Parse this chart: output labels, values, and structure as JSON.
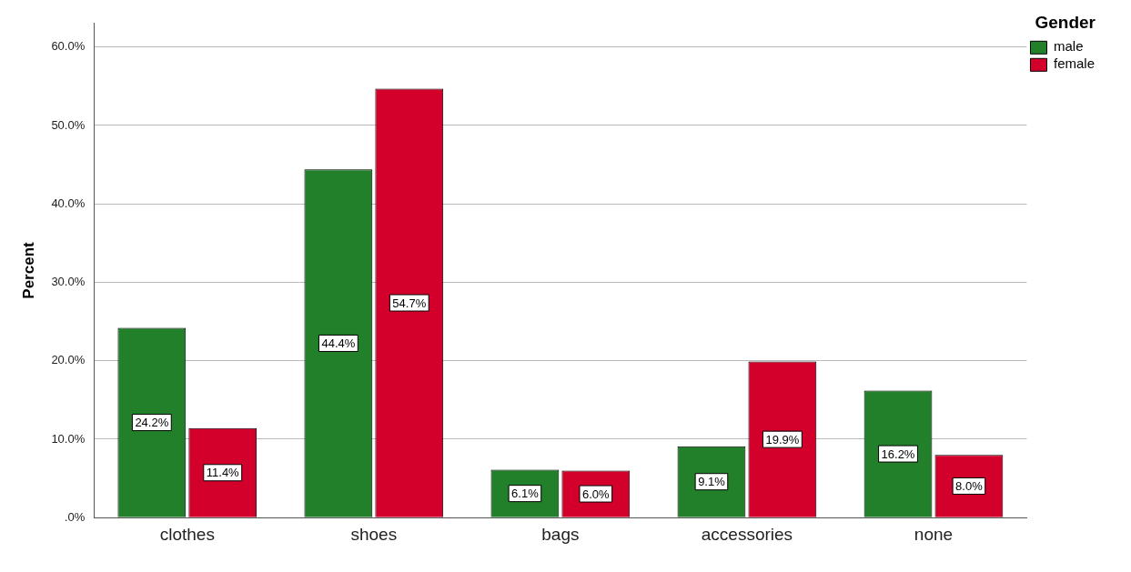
{
  "chart_data": {
    "type": "bar",
    "ylabel": "Percent",
    "legend_title": "Gender",
    "legend": "top right",
    "grid": "y",
    "categories": [
      "clothes",
      "shoes",
      "bags",
      "accessories",
      "none"
    ],
    "series": [
      {
        "name": "male",
        "color": "#23802a",
        "values": [
          24.2,
          44.4,
          6.1,
          9.1,
          16.2
        ],
        "value_labels": [
          "24.2%",
          "44.4%",
          "6.1%",
          "9.1%",
          "16.2%"
        ]
      },
      {
        "name": "female",
        "color": "#d4002c",
        "values": [
          11.4,
          54.7,
          6.0,
          19.9,
          8.0
        ],
        "value_labels": [
          "11.4%",
          "54.7%",
          "6.0%",
          "19.9%",
          "8.0%"
        ]
      }
    ],
    "ylim": [
      0,
      63
    ],
    "yticks": [
      {
        "value": 0,
        "label": ".0%"
      },
      {
        "value": 10,
        "label": "10.0%"
      },
      {
        "value": 20,
        "label": "20.0%"
      },
      {
        "value": 30,
        "label": "30.0%"
      },
      {
        "value": 40,
        "label": "40.0%"
      },
      {
        "value": 50,
        "label": "50.0%"
      },
      {
        "value": 60,
        "label": "60.0%"
      }
    ]
  }
}
